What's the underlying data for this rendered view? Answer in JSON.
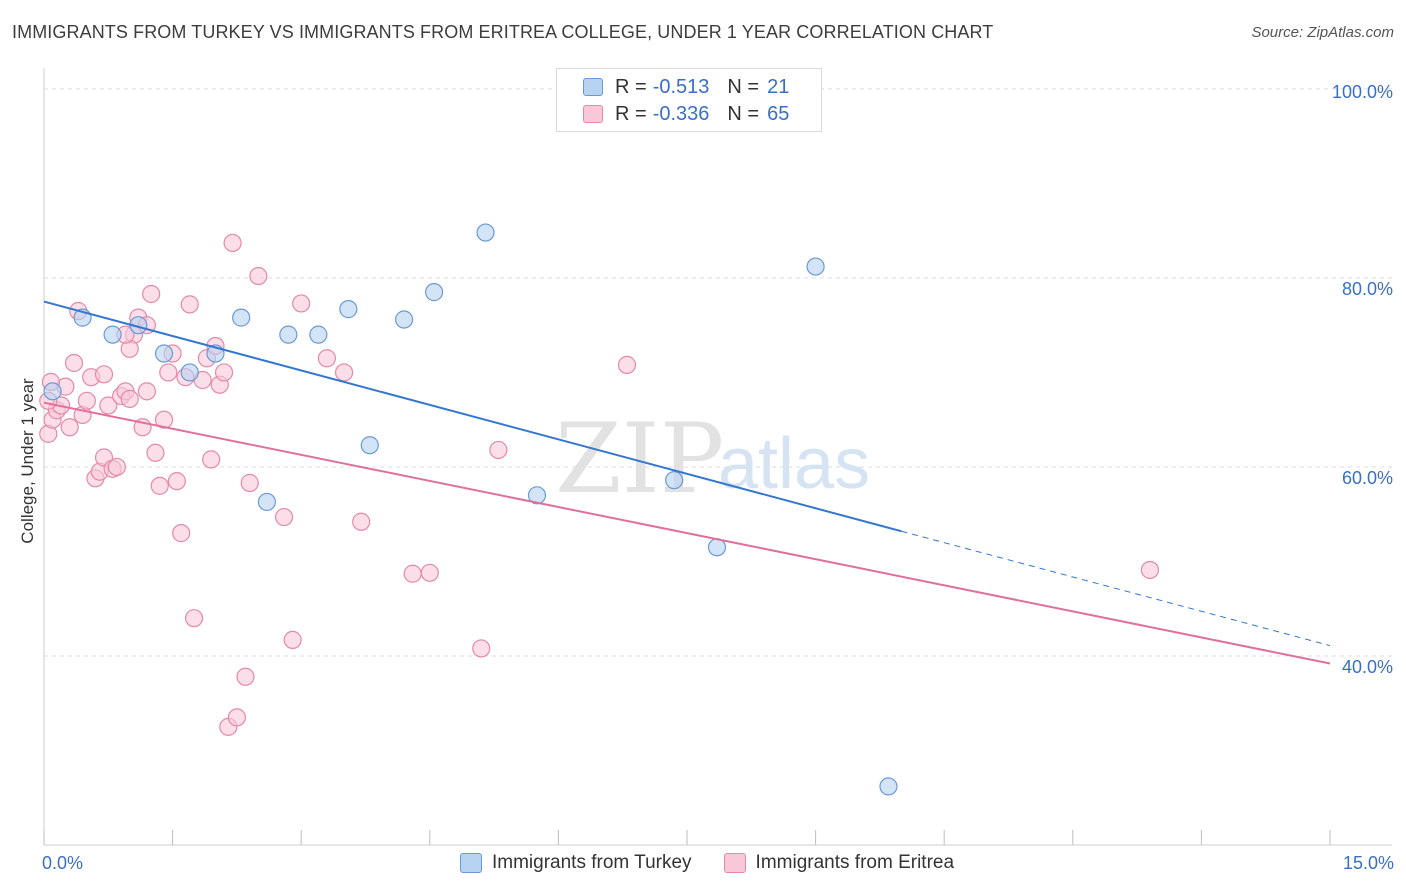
{
  "title": "IMMIGRANTS FROM TURKEY VS IMMIGRANTS FROM ERITREA COLLEGE, UNDER 1 YEAR CORRELATION CHART",
  "source": "Source: ZipAtlas.com",
  "watermark": {
    "zip": "ZIP",
    "atlas": "atlas"
  },
  "legend": {
    "series": [
      {
        "r_label": "R =",
        "r_value": "-0.513",
        "n_label": "N =",
        "n_value": "21"
      },
      {
        "r_label": "R =",
        "r_value": "-0.336",
        "n_label": "N =",
        "n_value": "65"
      }
    ]
  },
  "bottom_legend": [
    "Immigrants from Turkey",
    "Immigrants from Eritrea"
  ],
  "colors": {
    "turkey_fill": "#b8d2f2",
    "turkey_stroke": "#6a9ad6",
    "turkey_line": "#3377d0",
    "eritrea_fill": "#f9c8d8",
    "eritrea_stroke": "#e48aa8",
    "eritrea_line": "#e0709a",
    "tick_text": "#3a6fc4",
    "grid": "#dcdcdc"
  },
  "chart_data": {
    "type": "scatter",
    "title": "IMMIGRANTS FROM TURKEY VS IMMIGRANTS FROM ERITREA COLLEGE, UNDER 1 YEAR CORRELATION CHART",
    "xlabel": "",
    "ylabel": "College, Under 1 year",
    "xlim": [
      0,
      15
    ],
    "ylim": [
      20,
      102
    ],
    "x_tick_labels": {
      "min": "0.0%",
      "max": "15.0%"
    },
    "y_ticks": [
      {
        "value": 100,
        "label": "100.0%"
      },
      {
        "value": 80,
        "label": "80.0%"
      },
      {
        "value": 60,
        "label": "60.0%"
      },
      {
        "value": 40,
        "label": "40.0%"
      }
    ],
    "series": [
      {
        "name": "Immigrants from Turkey",
        "r": -0.513,
        "n": 21,
        "trend": {
          "x0": 0.0,
          "y0": 77.5,
          "x1": 10.0,
          "y1": 53.2,
          "dash_to_x": 15.0,
          "dash_to_y": 41.1
        },
        "points": [
          [
            0.1,
            68.0
          ],
          [
            0.45,
            75.8
          ],
          [
            0.8,
            74.0
          ],
          [
            1.1,
            75.0
          ],
          [
            1.4,
            72.0
          ],
          [
            1.7,
            70.0
          ],
          [
            2.0,
            72.0
          ],
          [
            2.3,
            75.8
          ],
          [
            2.85,
            74.0
          ],
          [
            3.2,
            74.0
          ],
          [
            3.55,
            76.7
          ],
          [
            3.8,
            62.3
          ],
          [
            4.2,
            75.6
          ],
          [
            4.55,
            78.5
          ],
          [
            5.15,
            84.8
          ],
          [
            5.75,
            57.0
          ],
          [
            7.35,
            58.6
          ],
          [
            7.85,
            51.5
          ],
          [
            9.0,
            81.2
          ],
          [
            2.6,
            56.3
          ],
          [
            9.85,
            26.2
          ]
        ]
      },
      {
        "name": "Immigrants from Eritrea",
        "r": -0.336,
        "n": 65,
        "trend": {
          "x0": 0.0,
          "y0": 66.8,
          "x1": 15.0,
          "y1": 39.2
        },
        "points": [
          [
            0.05,
            63.5
          ],
          [
            0.1,
            65.0
          ],
          [
            0.15,
            66.0
          ],
          [
            0.2,
            66.5
          ],
          [
            0.25,
            68.5
          ],
          [
            0.3,
            64.2
          ],
          [
            0.35,
            71.0
          ],
          [
            0.4,
            76.5
          ],
          [
            0.45,
            65.5
          ],
          [
            0.5,
            67.0
          ],
          [
            0.55,
            69.5
          ],
          [
            0.6,
            58.8
          ],
          [
            0.65,
            59.5
          ],
          [
            0.7,
            61.0
          ],
          [
            0.75,
            66.5
          ],
          [
            0.8,
            59.8
          ],
          [
            0.85,
            60.0
          ],
          [
            0.9,
            67.5
          ],
          [
            0.95,
            68.0
          ],
          [
            1.0,
            67.2
          ],
          [
            1.05,
            74.0
          ],
          [
            1.1,
            75.8
          ],
          [
            1.15,
            64.2
          ],
          [
            1.2,
            68.0
          ],
          [
            1.25,
            78.3
          ],
          [
            1.3,
            61.5
          ],
          [
            1.35,
            58.0
          ],
          [
            1.4,
            65.0
          ],
          [
            1.45,
            70.0
          ],
          [
            1.5,
            72.0
          ],
          [
            1.55,
            58.5
          ],
          [
            1.6,
            53.0
          ],
          [
            1.65,
            69.5
          ],
          [
            1.7,
            77.2
          ],
          [
            1.75,
            44.0
          ],
          [
            1.85,
            69.2
          ],
          [
            1.9,
            71.5
          ],
          [
            1.95,
            60.8
          ],
          [
            2.0,
            72.8
          ],
          [
            2.05,
            68.7
          ],
          [
            2.1,
            70.0
          ],
          [
            2.15,
            32.5
          ],
          [
            2.2,
            83.7
          ],
          [
            2.25,
            33.5
          ],
          [
            2.35,
            37.8
          ],
          [
            2.4,
            58.3
          ],
          [
            2.5,
            80.2
          ],
          [
            2.8,
            54.7
          ],
          [
            2.9,
            41.7
          ],
          [
            3.0,
            77.3
          ],
          [
            3.3,
            71.5
          ],
          [
            3.5,
            70.0
          ],
          [
            3.7,
            54.2
          ],
          [
            4.3,
            48.7
          ],
          [
            4.5,
            48.8
          ],
          [
            5.1,
            40.8
          ],
          [
            5.3,
            61.8
          ],
          [
            6.8,
            70.8
          ],
          [
            1.2,
            75.0
          ],
          [
            1.0,
            72.5
          ],
          [
            0.95,
            74.0
          ],
          [
            0.7,
            69.8
          ],
          [
            12.9,
            49.1
          ],
          [
            0.05,
            67.0
          ],
          [
            0.08,
            69.0
          ]
        ]
      }
    ]
  }
}
